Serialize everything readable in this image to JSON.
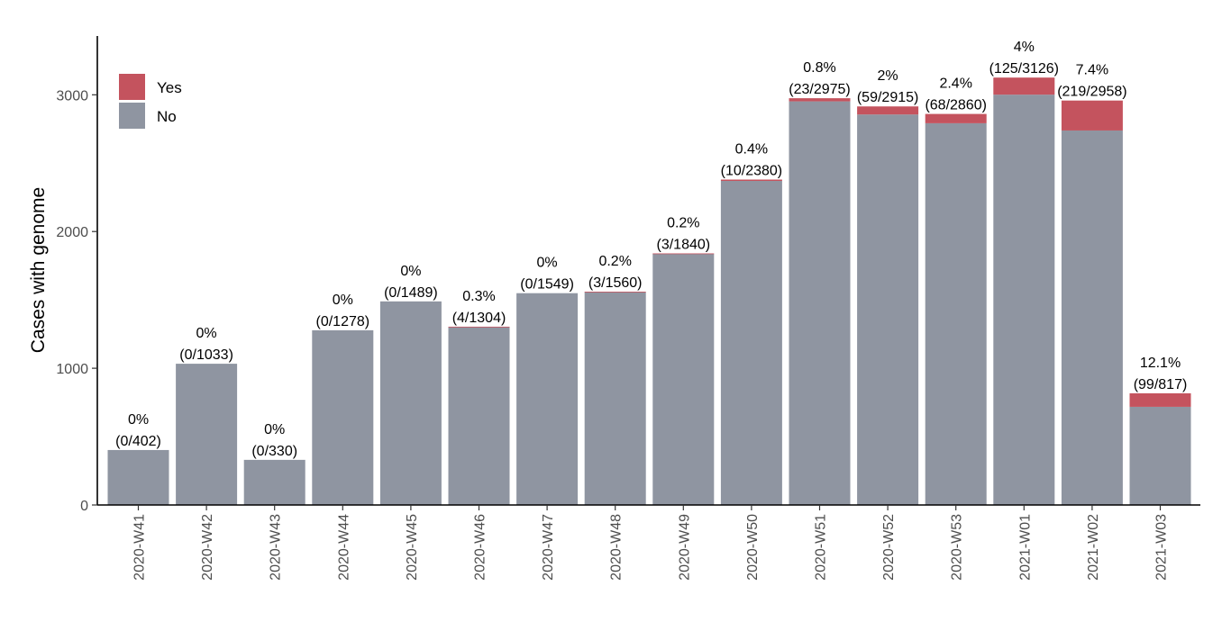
{
  "chart_data": {
    "type": "bar",
    "stacked": true,
    "categories": [
      "2020-W41",
      "2020-W42",
      "2020-W43",
      "2020-W44",
      "2020-W45",
      "2020-W46",
      "2020-W47",
      "2020-W48",
      "2020-W49",
      "2020-W50",
      "2020-W51",
      "2020-W52",
      "2020-W53",
      "2021-W01",
      "2021-W02",
      "2021-W03"
    ],
    "series": [
      {
        "name": "No",
        "color": "#8f95a1",
        "values": [
          402,
          1033,
          330,
          1278,
          1489,
          1300,
          1549,
          1557,
          1837,
          2370,
          2952,
          2856,
          2792,
          3001,
          2739,
          718
        ]
      },
      {
        "name": "Yes",
        "color": "#c4535e",
        "values": [
          0,
          0,
          0,
          0,
          0,
          4,
          0,
          3,
          3,
          10,
          23,
          59,
          68,
          125,
          219,
          99
        ]
      }
    ],
    "totals": [
      402,
      1033,
      330,
      1278,
      1489,
      1304,
      1549,
      1560,
      1840,
      2380,
      2975,
      2915,
      2860,
      3126,
      2958,
      817
    ],
    "percent_labels": [
      "0%",
      "0%",
      "0%",
      "0%",
      "0%",
      "0.3%",
      "0%",
      "0.2%",
      "0.2%",
      "0.4%",
      "0.8%",
      "2%",
      "2.4%",
      "4%",
      "7.4%",
      "12.1%"
    ],
    "count_labels": [
      "(0/402)",
      "(0/1033)",
      "(0/330)",
      "(0/1278)",
      "(0/1489)",
      "(4/1304)",
      "(0/1549)",
      "(3/1560)",
      "(3/1840)",
      "(10/2380)",
      "(23/2975)",
      "(59/2915)",
      "(68/2860)",
      "(125/3126)",
      "(219/2958)",
      "(99/817)"
    ],
    "xlabel": "",
    "ylabel": "Cases with genome",
    "ylim": [
      0,
      3430
    ],
    "yticks": [
      0,
      1000,
      2000,
      3000
    ],
    "ytick_labels": [
      "0",
      "1000",
      "2000",
      "3000"
    ],
    "legend": {
      "placement": "top-left",
      "entries": [
        "Yes",
        "No"
      ]
    },
    "grid": false
  }
}
